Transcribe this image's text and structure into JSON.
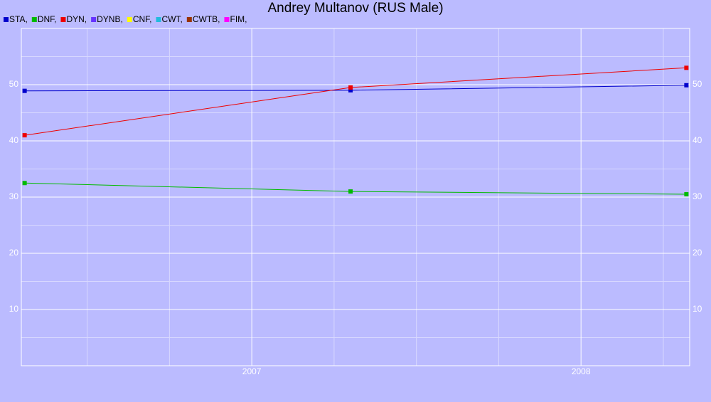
{
  "chart_data": {
    "type": "line",
    "title": "Andrey Multanov (RUS Male)",
    "x": [
      2006.31,
      2007.3,
      2008.32
    ],
    "xlim": [
      2006.3,
      2008.33
    ],
    "xticks": [
      2007,
      2008
    ],
    "minor_xticks": [
      2006.5,
      2006.75,
      2007.25,
      2007.5,
      2007.75,
      2008.25
    ],
    "ylim": [
      0,
      60
    ],
    "yticks": [
      10,
      20,
      30,
      40,
      50
    ],
    "minor_yticks": [
      5,
      15,
      25,
      35,
      45,
      55
    ],
    "grid": true,
    "right_axis_labels": true,
    "series": [
      {
        "name": "STA,",
        "color": "#0000cc",
        "values": [
          48.9,
          49.0,
          49.9
        ]
      },
      {
        "name": "DNF,",
        "color": "#00bb00",
        "values": [
          32.5,
          31.0,
          30.5
        ]
      },
      {
        "name": "DYN,",
        "color": "#ee0000",
        "values": [
          41.0,
          49.5,
          53.0
        ]
      },
      {
        "name": "DYNB,",
        "color": "#6633ff",
        "values": [
          null,
          null,
          null
        ]
      },
      {
        "name": "CNF,",
        "color": "#ffff00",
        "values": [
          null,
          null,
          null
        ]
      },
      {
        "name": "CWT,",
        "color": "#22bbdd",
        "values": [
          null,
          null,
          null
        ]
      },
      {
        "name": "CWTB,",
        "color": "#993300",
        "values": [
          null,
          null,
          null
        ]
      },
      {
        "name": "FIM,",
        "color": "#ff00ff",
        "values": [
          null,
          null,
          null
        ]
      }
    ]
  }
}
